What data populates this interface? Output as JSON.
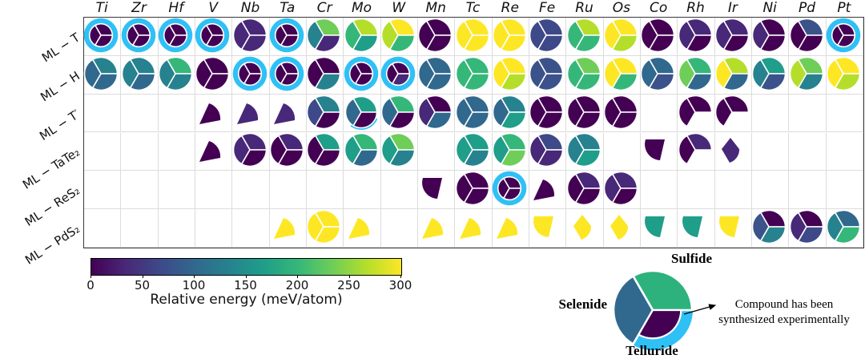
{
  "chart_data": {
    "type": "heatmap",
    "description": "Matrix of 3-segment pie markers: thermodynamic stability (relative energy, viridis colormap) of transition-metal dichalcogenide monolayers in six structure types. Each pie wedge = one chalcogenide (sulfide top, selenide left, telluride bottom). Cyan ring = compound synthesized experimentally. Partial shapes (leaf/kite/pac-man) = only some chalcogenides shown for that cell.",
    "columns": [
      "Ti",
      "Zr",
      "Hf",
      "V",
      "Nb",
      "Ta",
      "Cr",
      "Mo",
      "W",
      "Mn",
      "Tc",
      "Re",
      "Fe",
      "Ru",
      "Os",
      "Co",
      "Rh",
      "Ir",
      "Ni",
      "Pd",
      "Pt"
    ],
    "row_labels": [
      "ML − T",
      "ML − H",
      "ML − T′",
      "ML − TaTe₂",
      "ML − ReS₂",
      "ML − PdS₂"
    ],
    "wedge_order_deg": {
      "S": [
        0,
        120
      ],
      "Se": [
        120,
        240
      ],
      "Te": [
        240,
        360
      ]
    },
    "wedge_meaning": {
      "S": "Sulfide",
      "Se": "Selenide",
      "Te": "Telluride"
    },
    "energy_palette_approx_meV": [
      {
        "hex": "#440154",
        "meV": 0
      },
      {
        "hex": "#482878",
        "meV": 35
      },
      {
        "hex": "#3e4989",
        "meV": 70
      },
      {
        "hex": "#3b528b",
        "meV": 80
      },
      {
        "hex": "#31688e",
        "meV": 105
      },
      {
        "hex": "#26828e",
        "meV": 140
      },
      {
        "hex": "#1f9e89",
        "meV": 170
      },
      {
        "hex": "#35b779",
        "meV": 205
      },
      {
        "hex": "#6ece58",
        "meV": 240
      },
      {
        "hex": "#b5de2b",
        "meV": 270
      },
      {
        "hex": "#fde725",
        "meV": 300
      }
    ],
    "synthesized_ring_color": "#2fc1f5",
    "colorbar": {
      "label": "Relative energy (meV/atom)",
      "ticks": [
        0,
        50,
        100,
        150,
        200,
        250,
        300
      ],
      "min": 0,
      "max": 300,
      "colormap": "viridis",
      "gradient": [
        "#440154",
        "#482878",
        "#3e4989",
        "#31688e",
        "#26828e",
        "#1f9e89",
        "#35b779",
        "#6ece58",
        "#b5de2b",
        "#fde725"
      ]
    },
    "rows": [
      {
        "label": "ML − T",
        "cells": [
          {
            "w": {
              "S": "#440154",
              "Se": "#440154",
              "Te": "#440154"
            },
            "ring": "full"
          },
          {
            "w": {
              "S": "#440154",
              "Se": "#440154",
              "Te": "#440154"
            },
            "ring": "full"
          },
          {
            "w": {
              "S": "#440154",
              "Se": "#440154",
              "Te": "#440154"
            },
            "ring": "full"
          },
          {
            "w": {
              "S": "#440154",
              "Se": "#440154",
              "Te": "#440154"
            },
            "ring": "full"
          },
          {
            "w": {
              "S": "#482878",
              "Se": "#482878",
              "Te": "#482878"
            }
          },
          {
            "w": {
              "S": "#440154",
              "Se": "#440154",
              "Te": "#440154"
            },
            "ring": "full"
          },
          {
            "w": {
              "S": "#6ece58",
              "Se": "#26828e",
              "Te": "#482878"
            }
          },
          {
            "w": {
              "S": "#b5de2b",
              "Se": "#35b779",
              "Te": "#1f9e89"
            }
          },
          {
            "w": {
              "S": "#fde725",
              "Se": "#b5de2b",
              "Te": "#35b779"
            }
          },
          {
            "w": {
              "S": "#440154",
              "Se": "#440154",
              "Te": "#440154"
            }
          },
          {
            "w": {
              "S": "#fde725",
              "Se": "#fde725",
              "Te": "#fde725"
            }
          },
          {
            "w": {
              "S": "#fde725",
              "Se": "#fde725",
              "Te": "#fde725"
            }
          },
          {
            "w": {
              "S": "#3e4989",
              "Se": "#3e4989",
              "Te": "#3e4989"
            }
          },
          {
            "w": {
              "S": "#b5de2b",
              "Se": "#35b779",
              "Te": "#35b779"
            }
          },
          {
            "w": {
              "S": "#fde725",
              "Se": "#fde725",
              "Te": "#b5de2b"
            }
          },
          {
            "w": {
              "S": "#440154",
              "Se": "#440154",
              "Te": "#440154"
            }
          },
          {
            "w": {
              "S": "#482878",
              "Se": "#482878",
              "Te": "#440154"
            }
          },
          {
            "w": {
              "S": "#482878",
              "Se": "#482878",
              "Te": "#440154"
            }
          },
          {
            "w": {
              "S": "#440154",
              "Se": "#482878",
              "Te": "#440154"
            }
          },
          {
            "w": {
              "S": "#3b528b",
              "Se": "#440154",
              "Te": "#440154"
            }
          },
          {
            "w": {
              "S": "#440154",
              "Se": "#440154",
              "Te": "#440154"
            },
            "ring": "full"
          }
        ]
      },
      {
        "label": "ML − H",
        "cells": [
          {
            "w": {
              "S": "#26828e",
              "Se": "#31688e",
              "Te": "#31688e"
            }
          },
          {
            "w": {
              "S": "#26828e",
              "Se": "#26828e",
              "Te": "#31688e"
            }
          },
          {
            "w": {
              "S": "#35b779",
              "Se": "#26828e",
              "Te": "#26828e"
            }
          },
          {
            "w": {
              "S": "#440154",
              "Se": "#440154",
              "Te": "#440154"
            }
          },
          {
            "w": {
              "S": "#440154",
              "Se": "#440154",
              "Te": "#440154"
            },
            "ring": "full"
          },
          {
            "w": {
              "S": "#440154",
              "Se": "#440154",
              "Te": "#440154"
            },
            "ring": "full"
          },
          {
            "w": {
              "S": "#440154",
              "Se": "#440154",
              "Te": "#26828e"
            }
          },
          {
            "w": {
              "S": "#440154",
              "Se": "#440154",
              "Te": "#440154"
            },
            "ring": "full"
          },
          {
            "w": {
              "S": "#440154",
              "Se": "#440154",
              "Te": "#482878"
            },
            "ring": "full"
          },
          {
            "w": {
              "S": "#31688e",
              "Se": "#31688e",
              "Te": "#31688e"
            }
          },
          {
            "w": {
              "S": "#35b779",
              "Se": "#35b779",
              "Te": "#35b779"
            }
          },
          {
            "w": {
              "S": "#fde725",
              "Se": "#fde725",
              "Te": "#b5de2b"
            }
          },
          {
            "w": {
              "S": "#3b528b",
              "Se": "#3b528b",
              "Te": "#3b528b"
            }
          },
          {
            "w": {
              "S": "#6ece58",
              "Se": "#35b779",
              "Te": "#35b779"
            }
          },
          {
            "w": {
              "S": "#fde725",
              "Se": "#fde725",
              "Te": "#35b779"
            }
          },
          {
            "w": {
              "S": "#31688e",
              "Se": "#31688e",
              "Te": "#3b528b"
            }
          },
          {
            "w": {
              "S": "#35b779",
              "Se": "#6ece58",
              "Te": "#31688e"
            }
          },
          {
            "w": {
              "S": "#b5de2b",
              "Se": "#fde725",
              "Te": "#31688e"
            }
          },
          {
            "w": {
              "S": "#1f9e89",
              "Se": "#26828e",
              "Te": "#3b528b"
            }
          },
          {
            "w": {
              "S": "#6ece58",
              "Se": "#b5de2b",
              "Te": "#26828e"
            }
          },
          {
            "w": {
              "S": "#fde725",
              "Se": "#fde725",
              "Te": "#b5de2b"
            }
          }
        ]
      },
      {
        "label": "ML − T′",
        "cells": [
          null,
          null,
          null,
          {
            "w": {
              "Te": "#440154"
            },
            "shape": "leafA"
          },
          {
            "w": {
              "Te": "#482878"
            },
            "shape": "leafA"
          },
          {
            "w": {
              "Te": "#482878"
            },
            "shape": "leafA"
          },
          {
            "w": {
              "S": "#26828e",
              "Se": "#3e4989",
              "Te": "#440154"
            }
          },
          {
            "w": {
              "S": "#1f9e89",
              "Se": "#31688e",
              "Te": "#440154"
            },
            "ring": "te"
          },
          {
            "w": {
              "S": "#35b779",
              "Se": "#31688e",
              "Te": "#440154"
            }
          },
          {
            "w": {
              "S": "#440154",
              "Se": "#482878",
              "Te": "#31688e"
            }
          },
          {
            "w": {
              "S": "#31688e",
              "Se": "#31688e",
              "Te": "#31688e"
            }
          },
          {
            "w": {
              "S": "#26828e",
              "Se": "#31688e",
              "Te": "#1f9e89"
            }
          },
          {
            "w": {
              "S": "#440154",
              "Se": "#440154",
              "Te": "#440154"
            }
          },
          {
            "w": {
              "S": "#440154",
              "Se": "#440154",
              "Te": "#440154"
            }
          },
          {
            "w": {
              "S": "#440154",
              "Se": "#440154",
              "Te": "#440154"
            }
          },
          null,
          {
            "w": {
              "S": "#440154",
              "Se": "#440154"
            }
          },
          {
            "w": {
              "S": "#440154",
              "Se": "#440154"
            }
          },
          null,
          null,
          null
        ]
      },
      {
        "label": "ML − TaTe₂",
        "cells": [
          null,
          null,
          null,
          {
            "w": {
              "Te": "#440154"
            },
            "shape": "leafA"
          },
          {
            "w": {
              "S": "#482878",
              "Se": "#482878",
              "Te": "#440154"
            }
          },
          {
            "w": {
              "S": "#482878",
              "Se": "#440154",
              "Te": "#440154"
            }
          },
          {
            "w": {
              "S": "#1f9e89",
              "Se": "#440154",
              "Te": "#440154"
            }
          },
          {
            "w": {
              "S": "#35b779",
              "Se": "#1f9e89",
              "Te": "#31688e"
            }
          },
          {
            "w": {
              "S": "#6ece58",
              "Se": "#1f9e89",
              "Te": "#26828e"
            }
          },
          null,
          {
            "w": {
              "S": "#1f9e89",
              "Se": "#1f9e89",
              "Te": "#26828e"
            }
          },
          {
            "w": {
              "S": "#35b779",
              "Se": "#1f9e89",
              "Te": "#6ece58"
            }
          },
          {
            "w": {
              "S": "#3e4989",
              "Se": "#482878",
              "Te": "#482878"
            }
          },
          {
            "w": {
              "S": "#26828e",
              "Se": "#26828e",
              "Te": "#1f9e89"
            }
          },
          null,
          {
            "w": {
              "Se": "#440154"
            },
            "shape": "leafB"
          },
          {
            "w": {
              "S": "#482878",
              "Se": "#440154"
            }
          },
          {
            "w": {
              "Te": "#482878"
            },
            "shape": "kite"
          },
          null,
          null,
          null
        ]
      },
      {
        "label": "ML − ReS₂",
        "cells": [
          null,
          null,
          null,
          null,
          null,
          null,
          null,
          null,
          null,
          {
            "w": {
              "Se": "#440154"
            },
            "shape": "leafB"
          },
          {
            "w": {
              "S": "#440154",
              "Se": "#440154",
              "Te": "#440154"
            }
          },
          {
            "w": {
              "S": "#440154",
              "Se": "#440154",
              "Te": "#440154"
            },
            "ring": "full"
          },
          {
            "w": {
              "Te": "#440154"
            },
            "shape": "leafA"
          },
          {
            "w": {
              "S": "#482878",
              "Se": "#440154",
              "Te": "#440154"
            }
          },
          {
            "w": {
              "S": "#482878",
              "Se": "#482878",
              "Te": "#440154"
            }
          },
          null,
          null,
          null,
          null,
          null,
          null
        ]
      },
      {
        "label": "ML − PdS₂",
        "cells": [
          null,
          null,
          null,
          null,
          null,
          {
            "w": {
              "Te": "#fde725"
            },
            "shape": "leafA"
          },
          {
            "w": {
              "S": "#fde725",
              "Se": "#fde725",
              "Te": "#fde725"
            }
          },
          {
            "w": {
              "Te": "#fde725"
            },
            "shape": "leafA"
          },
          null,
          {
            "w": {
              "Te": "#fde725"
            },
            "shape": "leafA"
          },
          {
            "w": {
              "Te": "#fde725"
            },
            "shape": "leafA"
          },
          {
            "w": {
              "Te": "#fde725"
            },
            "shape": "leafA"
          },
          {
            "w": {
              "Se": "#fde725"
            },
            "shape": "leafB"
          },
          {
            "w": {
              "Te": "#fde725"
            },
            "shape": "kite"
          },
          {
            "w": {
              "Te": "#fde725"
            },
            "shape": "kite"
          },
          {
            "w": {
              "Se": "#1f9e89"
            },
            "shape": "leafB"
          },
          {
            "w": {
              "Se": "#1f9e89"
            },
            "shape": "leafB"
          },
          {
            "w": {
              "Se": "#fde725"
            },
            "shape": "leafB"
          },
          {
            "w": {
              "S": "#440154",
              "Se": "#3b528b",
              "Te": "#26828e"
            }
          },
          {
            "w": {
              "S": "#440154",
              "Se": "#482878",
              "Te": "#3e4989"
            }
          },
          {
            "w": {
              "S": "#31688e",
              "Se": "#26828e",
              "Te": "#35b779"
            }
          }
        ]
      }
    ]
  },
  "legend": {
    "wedge_labels": [
      "Sulfide",
      "Selenide",
      "Telluride"
    ],
    "colors": {
      "sulfide": "#2db27d",
      "selenide": "#31688e",
      "telluride": "#440154",
      "ring": "#2fc1f5"
    },
    "annotation": [
      "Compound has been",
      "synthesized experimentally"
    ]
  }
}
